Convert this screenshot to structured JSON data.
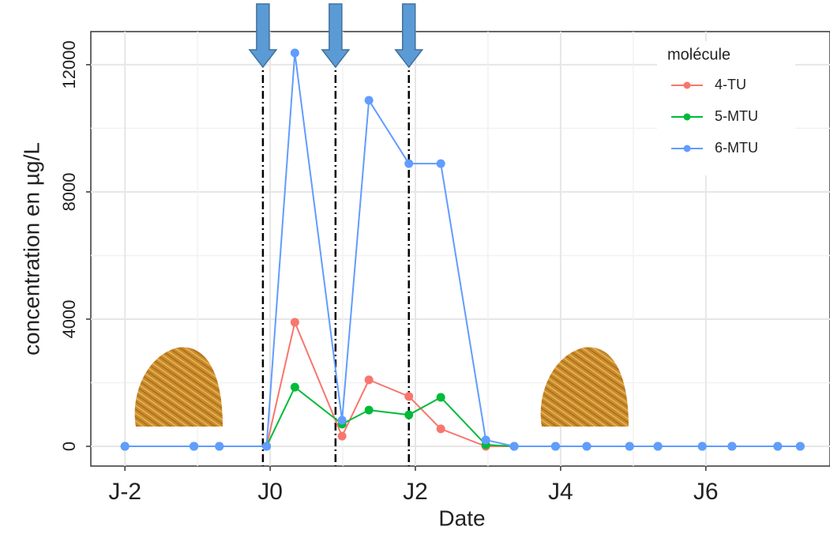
{
  "chart_data": {
    "type": "line",
    "x_label": "Date",
    "y_label": "concentration en µg/L",
    "legend_title": "molécule",
    "legend_position": "top-right",
    "grid": true,
    "xlim": [
      -2.47,
      7.71
    ],
    "ylim": [
      -620,
      13040
    ],
    "xticks": [
      {
        "value": -2,
        "label": "J-2"
      },
      {
        "value": 0,
        "label": "J0"
      },
      {
        "value": 2,
        "label": "J2"
      },
      {
        "value": 4,
        "label": "J4"
      },
      {
        "value": 6,
        "label": "J6"
      }
    ],
    "yticks": [
      0,
      4000,
      8000,
      12000
    ],
    "vlines": [
      -0.1,
      0.9,
      1.91
    ],
    "x": [
      -2.0,
      -1.05,
      -0.7,
      -0.05,
      0.34,
      0.99,
      1.36,
      1.91,
      2.35,
      2.97,
      3.36,
      3.93,
      4.36,
      4.95,
      5.34,
      5.95,
      6.36,
      6.99,
      7.3
    ],
    "series": [
      {
        "name": "4-TU",
        "color": "#F8766D",
        "values": [
          0,
          0,
          0,
          0,
          3900,
          320,
          2090,
          1570,
          550,
          0,
          0,
          0,
          0,
          0,
          0,
          0,
          0,
          0,
          0
        ]
      },
      {
        "name": "5-MTU",
        "color": "#00BA38",
        "values": [
          0,
          0,
          0,
          0,
          1860,
          700,
          1140,
          990,
          1540,
          50,
          0,
          0,
          0,
          0,
          0,
          0,
          0,
          0,
          0
        ]
      },
      {
        "name": "6-MTU",
        "color": "#619CFF",
        "values": [
          0,
          0,
          0,
          0,
          12370,
          820,
          10880,
          8890,
          8890,
          200,
          0,
          0,
          0,
          0,
          0,
          0,
          0,
          0,
          0
        ]
      }
    ]
  }
}
